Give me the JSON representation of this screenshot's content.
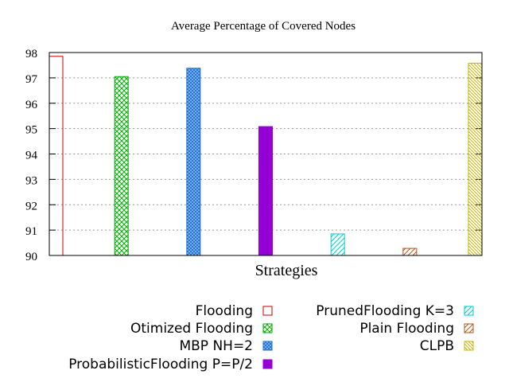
{
  "chart_data": {
    "type": "bar",
    "title": "Average Percentage of Covered Nodes",
    "xlabel": "Strategies",
    "ylabel": "",
    "ylim": [
      90,
      98
    ],
    "yticks": [
      "90",
      "91",
      "92",
      "93",
      "94",
      "95",
      "96",
      "97",
      "98"
    ],
    "grid": true,
    "legend_position": "bottom",
    "series": [
      {
        "name": "Flooding",
        "value": 97.85,
        "color": "#cc0000",
        "pattern": "empty"
      },
      {
        "name": "Otimized Flooding",
        "value": 97.05,
        "color": "#00aa00",
        "pattern": "crosshatch"
      },
      {
        "name": "MBP NH=2",
        "value": 97.38,
        "color": "#1a6fd1",
        "pattern": "dense-crosshatch"
      },
      {
        "name": "ProbabilisticFlooding P=P/2",
        "value": 95.08,
        "color": "#9400d3",
        "pattern": "solid"
      },
      {
        "name": "PrunedFlooding K=3",
        "value": 90.85,
        "color": "#00cccc",
        "pattern": "diagonal-sparse"
      },
      {
        "name": "Plain Flooding",
        "value": 90.28,
        "color": "#b5561b",
        "pattern": "diagonal-sparse"
      },
      {
        "name": "CLPB",
        "value": 97.58,
        "color": "#c8b400",
        "pattern": "diagonal-dense"
      }
    ]
  }
}
